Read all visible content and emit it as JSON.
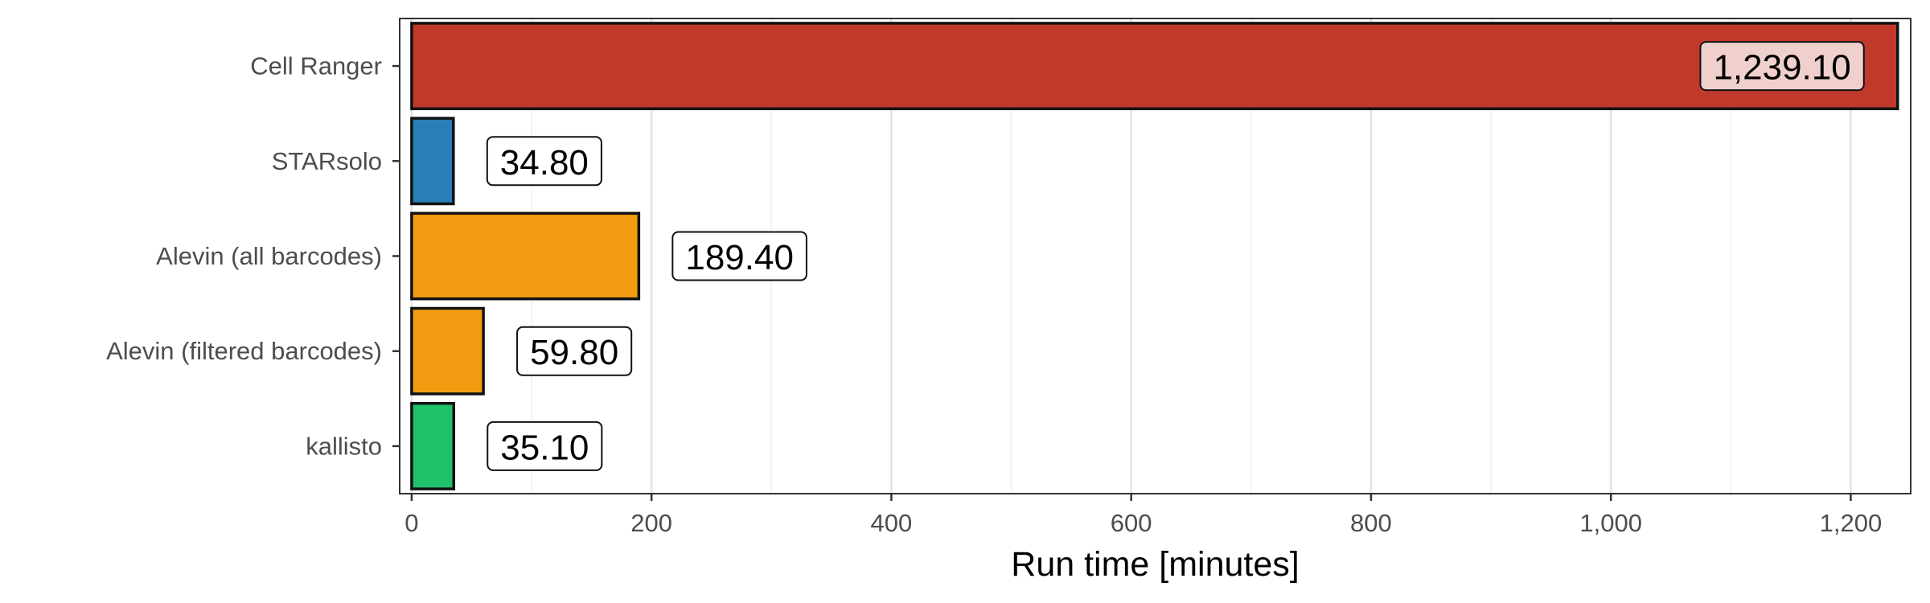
{
  "chart_data": {
    "type": "bar",
    "orientation": "horizontal",
    "categories": [
      "Cell Ranger",
      "STARsolo",
      "Alevin (all barcodes)",
      "Alevin (filtered barcodes)",
      "kallisto"
    ],
    "values": [
      1239.1,
      34.8,
      189.4,
      59.8,
      35.1
    ],
    "value_labels": [
      "1,239.10",
      "34.80",
      "189.40",
      "59.80",
      "35.10"
    ],
    "colors": [
      "#c0392b",
      "#2980b9",
      "#f39c12",
      "#f39c12",
      "#1fc16b"
    ],
    "label_fill_colors": [
      "#f0d0cc",
      "#ffffff",
      "#ffffff",
      "#ffffff",
      "#ffffff"
    ],
    "xlabel": "Run time [minutes]",
    "ylabel": "",
    "title": "",
    "xlim": [
      -10,
      1250
    ],
    "x_ticks": [
      0,
      200,
      400,
      600,
      800,
      1000,
      1200
    ],
    "x_tick_labels": [
      "0",
      "200",
      "400",
      "600",
      "800",
      "1,000",
      "1,200"
    ],
    "minor_grid_x": [
      100,
      300,
      500,
      700,
      900,
      1100
    ],
    "grid": true,
    "legend": "none"
  }
}
